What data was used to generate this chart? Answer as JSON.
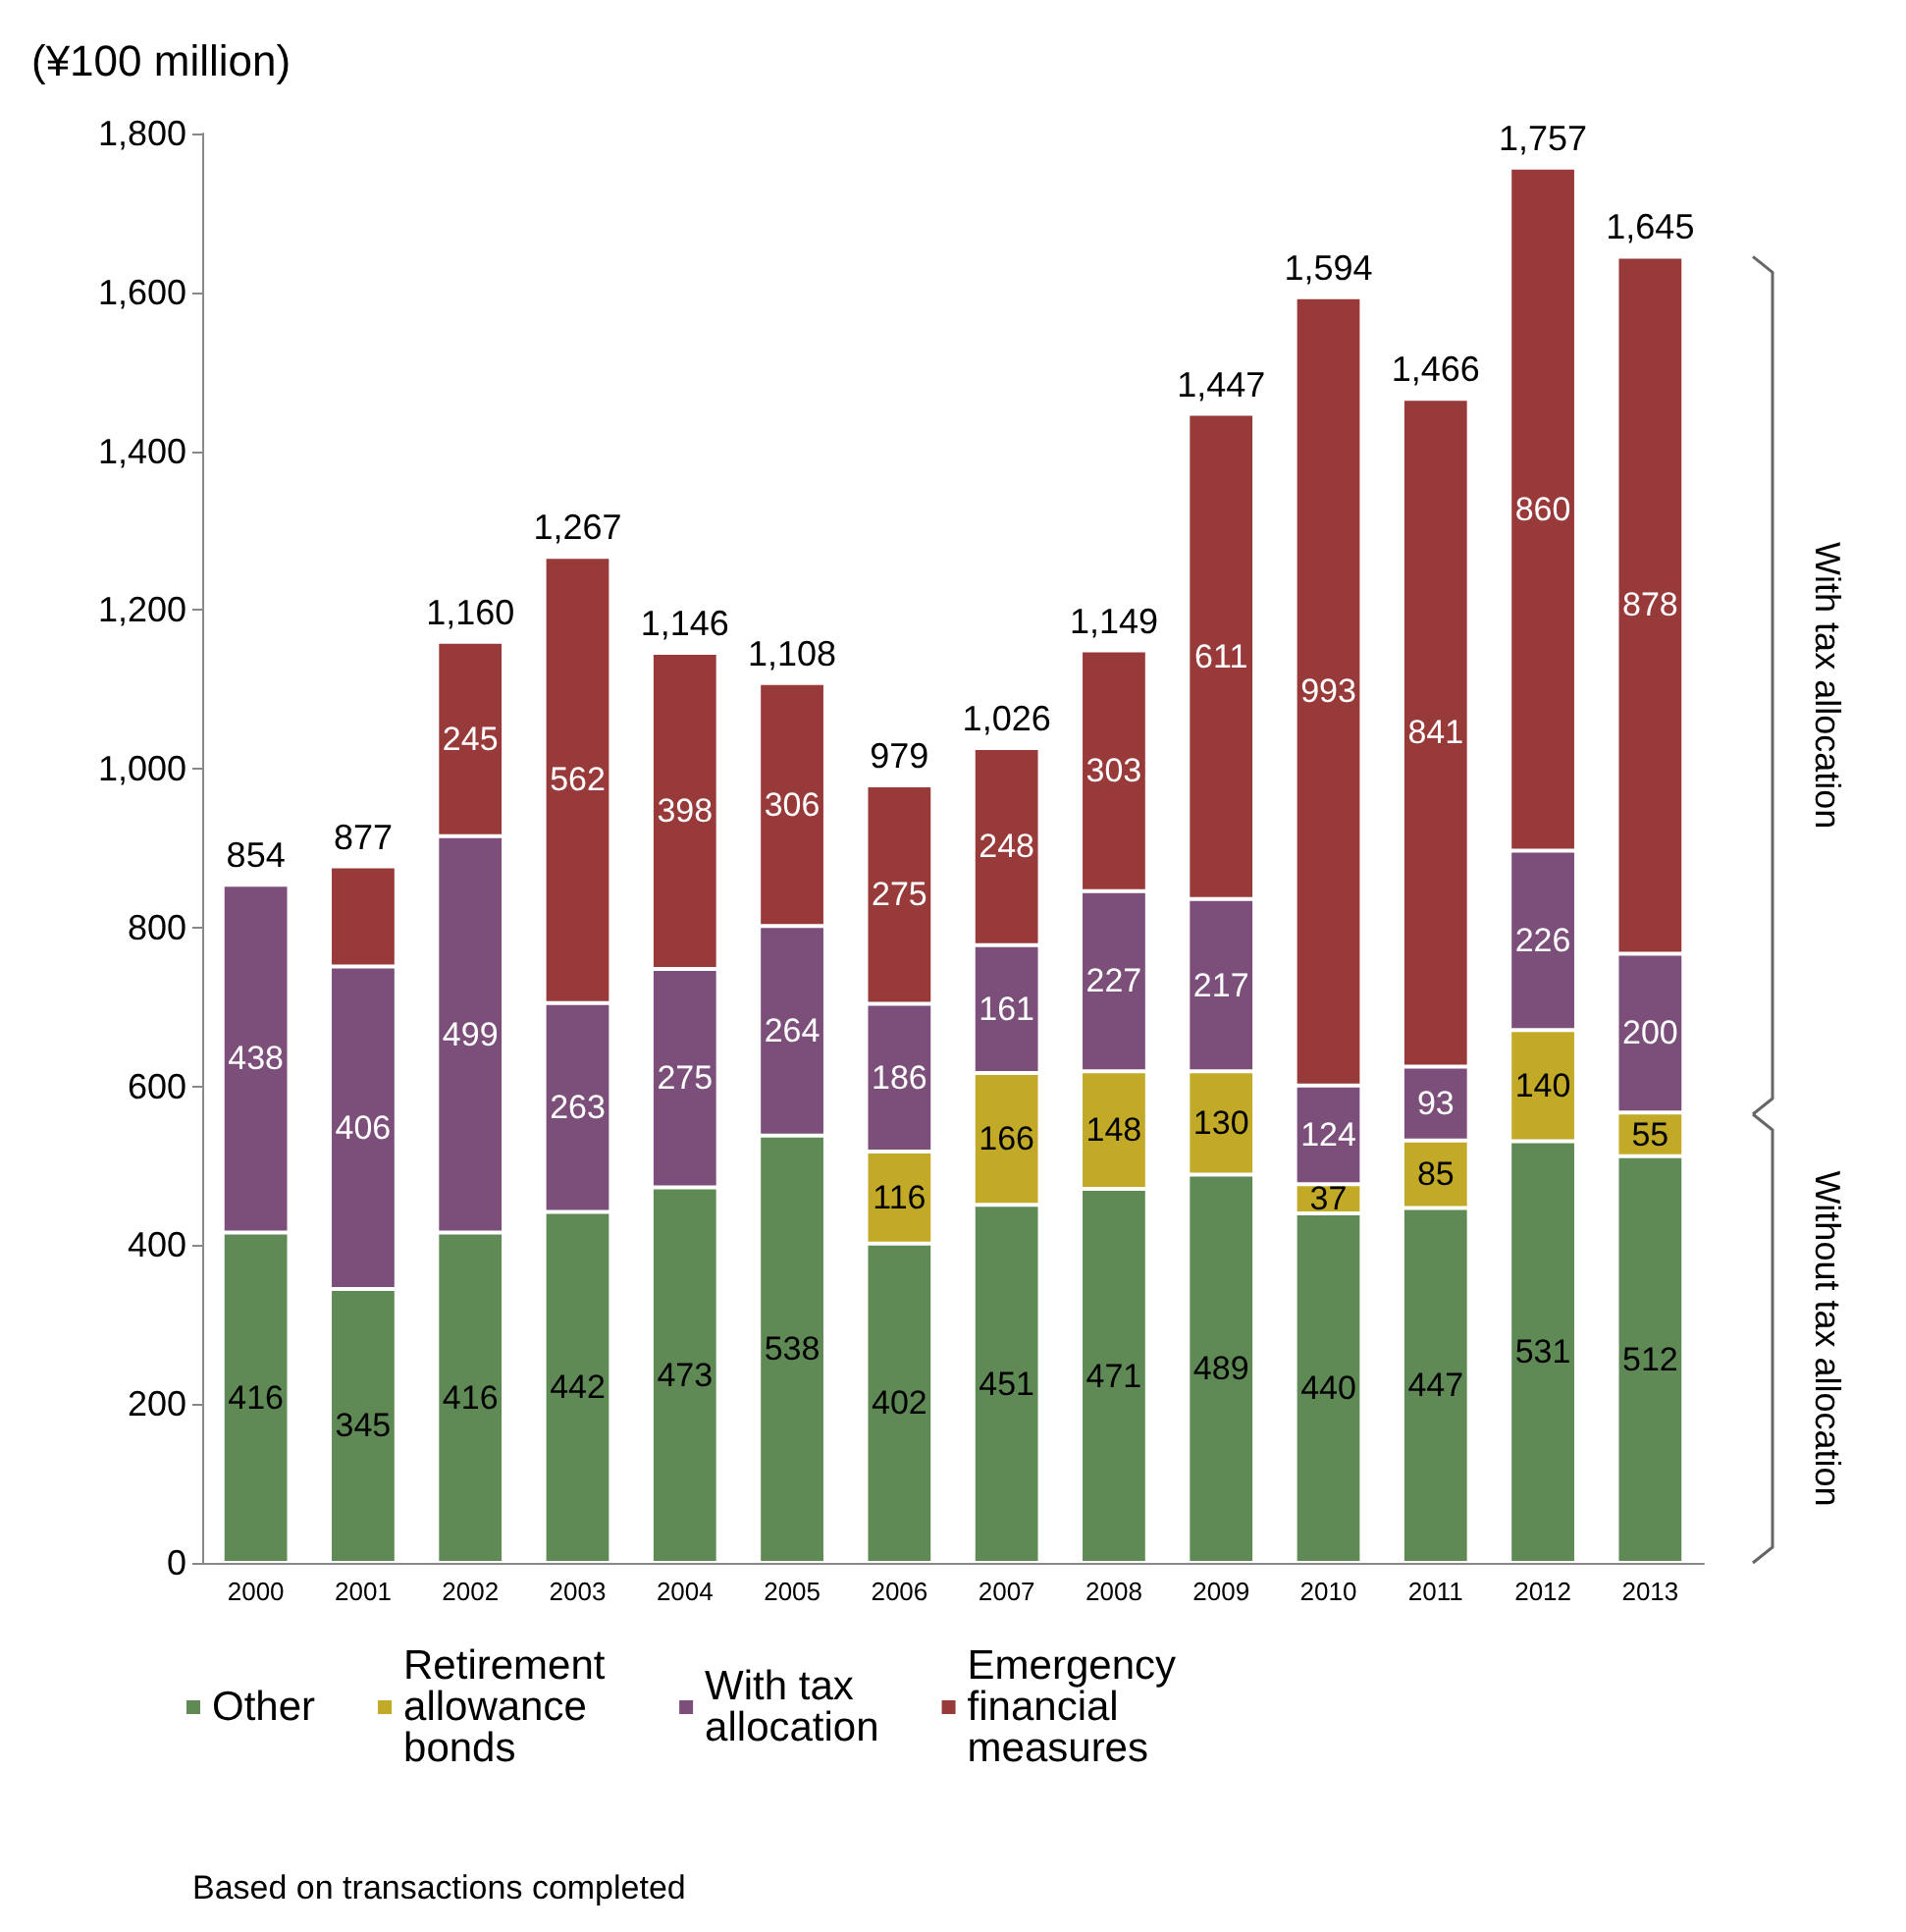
{
  "chart_data": {
    "type": "bar",
    "stacked": true,
    "ylabel": "(¥100 million)",
    "categories": [
      "2000",
      "2001",
      "2002",
      "2003",
      "2004",
      "2005",
      "2006",
      "2007",
      "2008",
      "2009",
      "2010",
      "2011",
      "2012",
      "2013"
    ],
    "series": [
      {
        "name": "Other",
        "color": "#5f8a55",
        "values": [
          416,
          345,
          416,
          442,
          473,
          538,
          402,
          451,
          471,
          489,
          440,
          447,
          531,
          512
        ],
        "value_labels": [
          "416",
          "345",
          "416",
          "442",
          "473",
          "538",
          "402",
          "451",
          "471",
          "489",
          "440",
          "447",
          "531",
          "512"
        ]
      },
      {
        "name": "Retirement allowance bonds",
        "color": "#c2aa28",
        "values": [
          null,
          null,
          null,
          null,
          null,
          null,
          116,
          166,
          148,
          130,
          37,
          85,
          140,
          55
        ],
        "value_labels": [
          null,
          null,
          null,
          null,
          null,
          null,
          "116",
          "166",
          "148",
          "130",
          "37",
          "85",
          "140",
          "55"
        ]
      },
      {
        "name": "With tax allocation",
        "color": "#7b4f7a",
        "values": [
          438,
          406,
          499,
          263,
          275,
          264,
          186,
          161,
          227,
          217,
          124,
          93,
          226,
          200
        ],
        "value_labels": [
          "438",
          "406",
          "499",
          "263",
          "275",
          "264",
          "186",
          "161",
          "227",
          "217",
          "124",
          "93",
          "226",
          "200"
        ]
      },
      {
        "name": "Emergency financial measures",
        "color": "#983a3a",
        "values": [
          null,
          126,
          245,
          562,
          398,
          306,
          275,
          248,
          303,
          611,
          993,
          841,
          860,
          878
        ],
        "value_labels": [
          null,
          null,
          "245",
          "562",
          "398",
          "306",
          "275",
          "248",
          "303",
          "611",
          "993",
          "841",
          "860",
          "878"
        ]
      }
    ],
    "totals": [
      "854",
      "877",
      "1,160",
      "1,267",
      "1,146",
      "1,108",
      "979",
      "1,026",
      "1,149",
      "1,447",
      "1,594",
      "1,466",
      "1,757",
      "1,645"
    ],
    "ylim": [
      0,
      1800
    ],
    "yticks": [
      0,
      200,
      400,
      600,
      800,
      {
        "value": 1000,
        "label": "1,000"
      },
      {
        "value": 1200,
        "label": "1,200"
      },
      {
        "value": 1400,
        "label": "1,400"
      },
      {
        "value": 1600,
        "label": "1,600"
      },
      {
        "value": 1800,
        "label": "1,800"
      }
    ],
    "grid": false,
    "legend": "bottom",
    "annotations": [
      "With tax allocation",
      "Without tax allocation",
      "Based on transactions completed"
    ]
  }
}
